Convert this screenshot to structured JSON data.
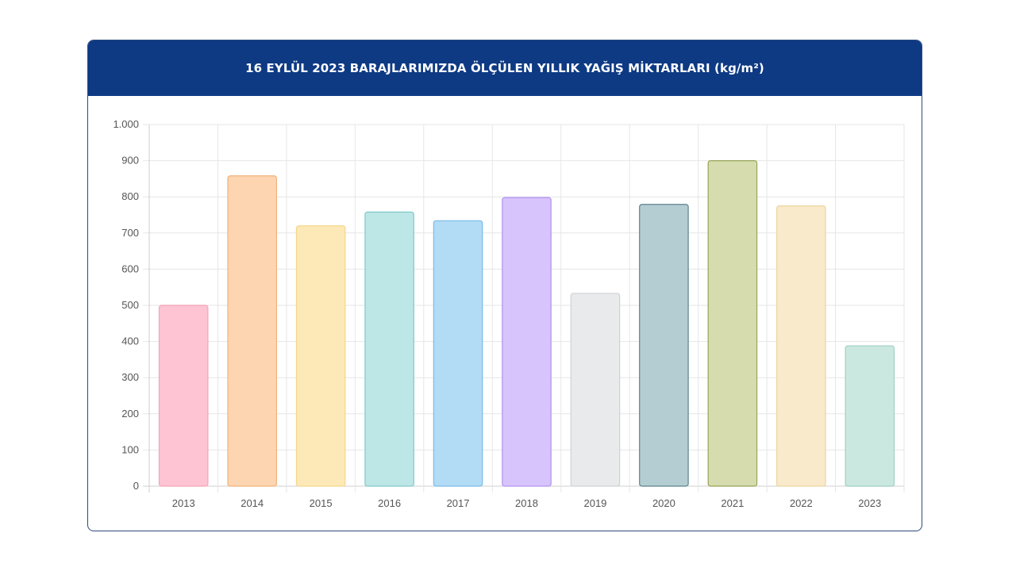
{
  "header": {
    "title": "16 EYLÜL 2023 BARAJLARIMIZDA ÖLÇÜLEN YILLIK YAĞIŞ MİKTARLARI (kg/m²)"
  },
  "chart_data": {
    "type": "bar",
    "title": "16 EYLÜL 2023 BARAJLARIMIZDA ÖLÇÜLEN YILLIK YAĞIŞ MİKTARLARI (kg/m²)",
    "categories": [
      "2013",
      "2014",
      "2015",
      "2016",
      "2017",
      "2018",
      "2019",
      "2020",
      "2021",
      "2022",
      "2023"
    ],
    "values": [
      500,
      858,
      720,
      758,
      734,
      798,
      533,
      779,
      900,
      775,
      388
    ],
    "ylim": [
      0,
      1000
    ],
    "yticks": [
      0,
      100,
      200,
      300,
      400,
      500,
      600,
      700,
      800,
      900,
      1000
    ],
    "ytick_labels": [
      "0",
      "100",
      "200",
      "300",
      "400",
      "500",
      "600",
      "700",
      "800",
      "900",
      "1.000"
    ],
    "grid": true,
    "legend": false,
    "colors": {
      "fill": [
        "#ffc4d3",
        "#fdd5b1",
        "#fde8b8",
        "#bde6e6",
        "#b2dbf6",
        "#d8c4fc",
        "#e9eaec",
        "#b4cdd2",
        "#d6dcae",
        "#faeacc",
        "#cbe8e0"
      ],
      "stroke": [
        "#f4a3b8",
        "#f1b27a",
        "#f5d78a",
        "#7fcaca",
        "#78bce8",
        "#b191ef",
        "#cfd1d5",
        "#5d838c",
        "#98a35a",
        "#ecd59c",
        "#9fd0c3"
      ]
    }
  }
}
